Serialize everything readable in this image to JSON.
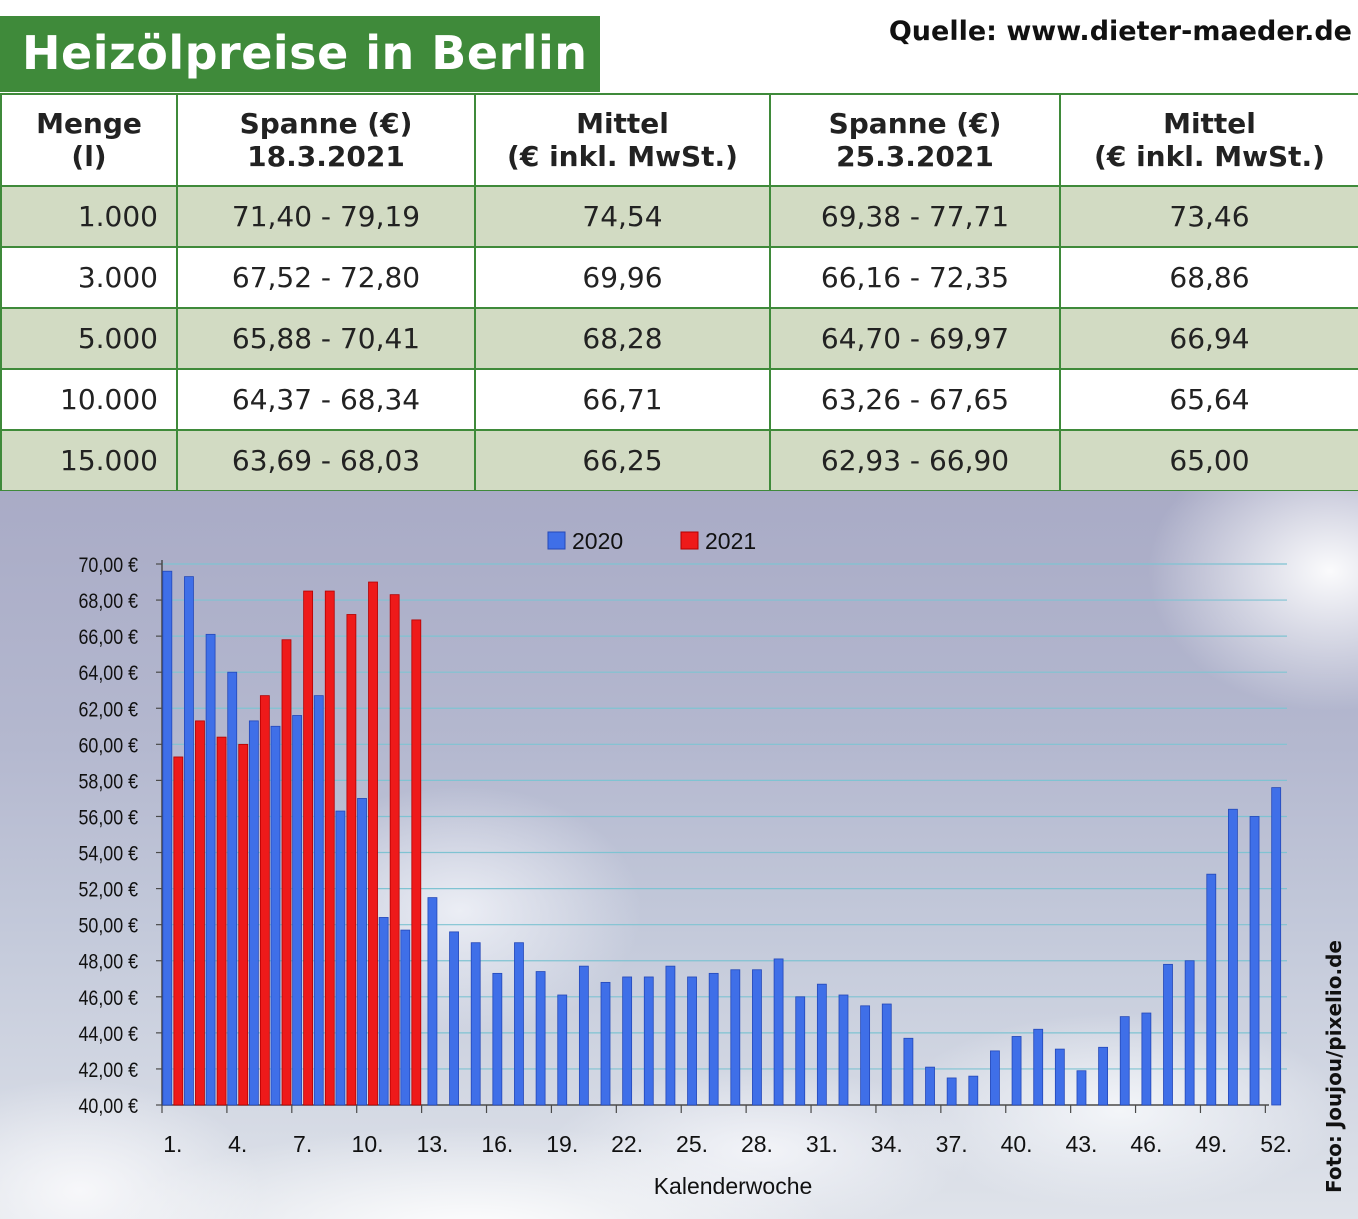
{
  "title": "Heizölpreise in Berlin",
  "source": "Quelle: www.dieter-maeder.de",
  "table": {
    "headers": [
      {
        "l1": "Menge",
        "l2": "(l)"
      },
      {
        "l1": "Spanne (€)",
        "l2": "18.3.2021"
      },
      {
        "l1": "Mittel",
        "l2": "(€ inkl. MwSt.)"
      },
      {
        "l1": "Spanne (€)",
        "l2": "25.3.2021"
      },
      {
        "l1": "Mittel",
        "l2": "(€ inkl. MwSt.)"
      }
    ],
    "rows": [
      [
        "1.000",
        "71,40 - 79,19",
        "74,54",
        "69,38 - 77,71",
        "73,46"
      ],
      [
        "3.000",
        "67,52 - 72,80",
        "69,96",
        "66,16 - 72,35",
        "68,86"
      ],
      [
        "5.000",
        "65,88 - 70,41",
        "68,28",
        "64,70 - 69,97",
        "66,94"
      ],
      [
        "10.000",
        "64,37 - 68,34",
        "66,71",
        "63,26 - 67,65",
        "65,64"
      ],
      [
        "15.000",
        "63,69 - 68,03",
        "66,25",
        "62,93 - 66,90",
        "65,00"
      ]
    ]
  },
  "photo_credit": "Foto: Joujou/pixelio.de",
  "chart_data": {
    "type": "bar",
    "xlabel": "Kalenderwoche",
    "ylabel": "",
    "ylim": [
      40,
      70
    ],
    "y_ticks": [
      "40,00 €",
      "42,00 €",
      "44,00 €",
      "46,00 €",
      "48,00 €",
      "50,00 €",
      "52,00 €",
      "54,00 €",
      "56,00 €",
      "58,00 €",
      "60,00 €",
      "62,00 €",
      "64,00 €",
      "66,00 €",
      "68,00 €",
      "70,00 €"
    ],
    "x_ticks": [
      "1.",
      "4.",
      "7.",
      "10.",
      "13.",
      "16.",
      "19.",
      "22.",
      "25.",
      "28.",
      "31.",
      "34.",
      "37.",
      "40.",
      "43.",
      "46.",
      "49.",
      "52."
    ],
    "legend_position": "top",
    "grid": true,
    "series": [
      {
        "name": "2020",
        "color": "#3f6fe8",
        "values": [
          69.6,
          69.3,
          66.1,
          64.0,
          61.3,
          61.0,
          61.6,
          62.7,
          56.3,
          57.0,
          50.4,
          49.7,
          51.5,
          49.6,
          49.0,
          47.3,
          49.0,
          47.4,
          46.1,
          47.7,
          46.8,
          47.1,
          47.1,
          47.7,
          47.1,
          47.3,
          47.5,
          47.5,
          48.1,
          46.0,
          46.7,
          46.1,
          45.5,
          45.6,
          43.7,
          42.1,
          41.5,
          41.6,
          43.0,
          43.8,
          44.2,
          43.1,
          41.9,
          43.2,
          44.9,
          45.1,
          47.8,
          48.0,
          52.8,
          56.4,
          56.0,
          57.6
        ]
      },
      {
        "name": "2021",
        "color": "#ee1a1a",
        "values": [
          59.3,
          61.3,
          60.4,
          60.0,
          62.7,
          65.8,
          68.5,
          68.5,
          67.2,
          69.0,
          68.3,
          66.9
        ]
      }
    ]
  }
}
